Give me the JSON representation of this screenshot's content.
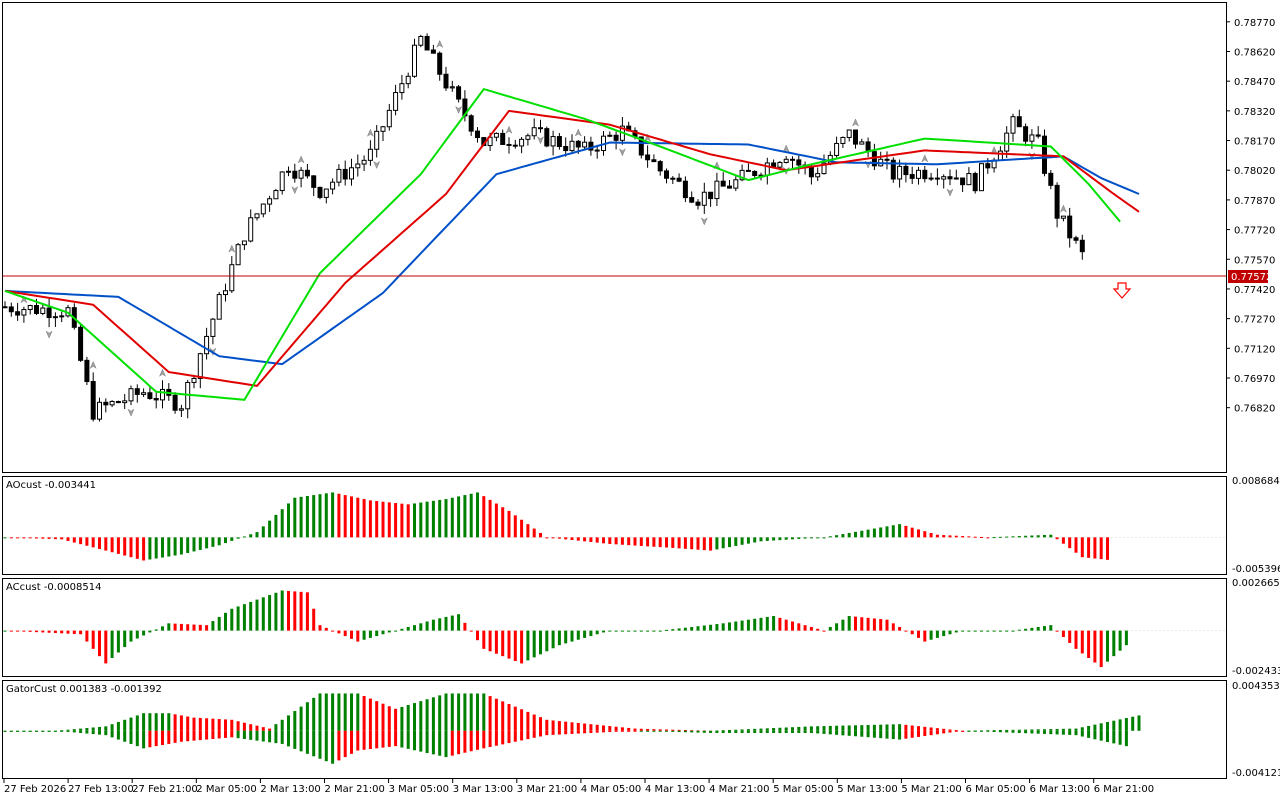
{
  "colors": {
    "bull": "#008000",
    "bear": "#ff0000",
    "jaw": "#0050c8",
    "teeth": "#e00000",
    "lips": "#00e000",
    "price_line": "#c00000",
    "candle": "#000000",
    "fractal": "#a0a0a0",
    "axis": "#000000"
  },
  "icons": {
    "signal": "down-arrow-icon",
    "fractal": "fractal-arrow-icon"
  },
  "chart_data": [
    {
      "type": "candlestick",
      "title": "",
      "ylim": [
        0.765,
        0.7886
      ],
      "y_ticks": [
        "0.78770",
        "0.78620",
        "0.78470",
        "0.78320",
        "0.78170",
        "0.78020",
        "0.77870",
        "0.77720",
        "0.77570",
        "0.77420",
        "0.77270",
        "0.77120",
        "0.76970",
        "0.76820"
      ],
      "current_price": "0.77572",
      "x_labels": [
        "27 Feb 2026",
        "27 Feb 13:00",
        "27 Feb 21:00",
        "2 Mar 05:00",
        "2 Mar 13:00",
        "2 Mar 21:00",
        "3 Mar 05:00",
        "3 Mar 13:00",
        "3 Mar 21:00",
        "4 Mar 05:00",
        "4 Mar 13:00",
        "4 Mar 21:00",
        "5 Mar 05:00",
        "5 Mar 13:00",
        "5 Mar 21:00",
        "6 Mar 05:00",
        "6 Mar 13:00",
        "6 Mar 21:00"
      ],
      "close_path": [
        [
          0,
          0.7733
        ],
        [
          10,
          0.7731
        ],
        [
          14,
          0.768
        ],
        [
          22,
          0.769
        ],
        [
          28,
          0.7684
        ],
        [
          38,
          0.777
        ],
        [
          45,
          0.7805
        ],
        [
          50,
          0.7792
        ],
        [
          58,
          0.781
        ],
        [
          66,
          0.7868
        ],
        [
          72,
          0.7835
        ],
        [
          76,
          0.7816
        ],
        [
          84,
          0.782
        ],
        [
          92,
          0.7812
        ],
        [
          98,
          0.7822
        ],
        [
          104,
          0.7802
        ],
        [
          110,
          0.7788
        ],
        [
          116,
          0.7796
        ],
        [
          124,
          0.7811
        ],
        [
          128,
          0.7799
        ],
        [
          134,
          0.782
        ],
        [
          141,
          0.78
        ],
        [
          148,
          0.7802
        ],
        [
          154,
          0.7796
        ],
        [
          160,
          0.7825
        ],
        [
          164,
          0.7815
        ],
        [
          167,
          0.778
        ],
        [
          171,
          0.7759
        ]
      ],
      "alligator_jaw": [
        [
          0,
          0.7741
        ],
        [
          18,
          0.7738
        ],
        [
          34,
          0.7708
        ],
        [
          44,
          0.7704
        ],
        [
          60,
          0.774
        ],
        [
          78,
          0.78
        ],
        [
          96,
          0.7816
        ],
        [
          118,
          0.7815
        ],
        [
          132,
          0.7806
        ],
        [
          148,
          0.7805
        ],
        [
          168,
          0.7809
        ],
        [
          174,
          0.7798
        ],
        [
          180,
          0.779
        ]
      ],
      "alligator_teeth": [
        [
          0,
          0.7741
        ],
        [
          14,
          0.7734
        ],
        [
          26,
          0.77
        ],
        [
          40,
          0.7693
        ],
        [
          54,
          0.7745
        ],
        [
          70,
          0.779
        ],
        [
          80,
          0.7832
        ],
        [
          96,
          0.7825
        ],
        [
          112,
          0.781
        ],
        [
          124,
          0.7802
        ],
        [
          146,
          0.7812
        ],
        [
          168,
          0.7809
        ],
        [
          176,
          0.779
        ],
        [
          180,
          0.7781
        ]
      ],
      "alligator_lips": [
        [
          0,
          0.7741
        ],
        [
          10,
          0.773
        ],
        [
          24,
          0.769
        ],
        [
          38,
          0.7686
        ],
        [
          50,
          0.775
        ],
        [
          66,
          0.78
        ],
        [
          76,
          0.7843
        ],
        [
          92,
          0.7828
        ],
        [
          104,
          0.7814
        ],
        [
          118,
          0.7797
        ],
        [
          128,
          0.7805
        ],
        [
          146,
          0.7818
        ],
        [
          166,
          0.7814
        ],
        [
          172,
          0.7795
        ],
        [
          177,
          0.7776
        ]
      ]
    },
    {
      "type": "bar",
      "name": "AOcust",
      "label_value": "-0.003441",
      "ylim": [
        -0.005396,
        0.008684
      ],
      "y_ticks": [
        "0.008684",
        "-0.005396"
      ],
      "values_path": [
        [
          0,
          0
        ],
        [
          9,
          -0.0003
        ],
        [
          16,
          -0.002
        ],
        [
          22,
          -0.0035
        ],
        [
          28,
          -0.0026
        ],
        [
          34,
          -0.0012
        ],
        [
          40,
          0.0008
        ],
        [
          46,
          0.006
        ],
        [
          52,
          0.0068
        ],
        [
          58,
          0.0056
        ],
        [
          64,
          0.005
        ],
        [
          70,
          0.0058
        ],
        [
          75,
          0.0068
        ],
        [
          80,
          0.004
        ],
        [
          86,
          0
        ],
        [
          96,
          -0.001
        ],
        [
          106,
          -0.0016
        ],
        [
          112,
          -0.002
        ],
        [
          120,
          -0.0006
        ],
        [
          130,
          0
        ],
        [
          136,
          0.001
        ],
        [
          142,
          0.002
        ],
        [
          148,
          0.0004
        ],
        [
          156,
          0
        ],
        [
          166,
          0.0004
        ],
        [
          171,
          -0.003
        ],
        [
          175,
          -0.0034
        ]
      ]
    },
    {
      "type": "bar",
      "name": "ACcust",
      "label_value": "-0.0008514",
      "ylim": [
        -0.0024338,
        0.0026658
      ],
      "y_ticks": [
        "0.0026658",
        "-0.0024338"
      ],
      "values_path": [
        [
          0,
          0
        ],
        [
          12,
          -0.0002
        ],
        [
          16,
          -0.0018
        ],
        [
          20,
          -0.0006
        ],
        [
          26,
          0.0004
        ],
        [
          32,
          0.0003
        ],
        [
          36,
          0.0012
        ],
        [
          44,
          0.0022
        ],
        [
          48,
          0.0021
        ],
        [
          50,
          0.0003
        ],
        [
          56,
          -0.0006
        ],
        [
          62,
          0
        ],
        [
          68,
          0.0006
        ],
        [
          72,
          0.0009
        ],
        [
          76,
          -0.001
        ],
        [
          82,
          -0.0018
        ],
        [
          88,
          -0.0008
        ],
        [
          96,
          0
        ],
        [
          104,
          0
        ],
        [
          114,
          0.0004
        ],
        [
          122,
          0.0008
        ],
        [
          130,
          0
        ],
        [
          134,
          0.0008
        ],
        [
          140,
          0.0006
        ],
        [
          146,
          -0.0006
        ],
        [
          152,
          0
        ],
        [
          160,
          0
        ],
        [
          166,
          0.0003
        ],
        [
          170,
          -0.001
        ],
        [
          174,
          -0.002
        ],
        [
          178,
          -0.0008
        ]
      ]
    },
    {
      "type": "bar",
      "name": "GatorCust",
      "label_value": "0.001383 -0.001392",
      "ylim": [
        -0.004121,
        0.004353
      ],
      "y_ticks": [
        "0.004353",
        "-0.004121"
      ],
      "upper_path": [
        [
          0,
          0
        ],
        [
          8,
          0
        ],
        [
          16,
          0.0004
        ],
        [
          22,
          0.0016
        ],
        [
          26,
          0.0016
        ],
        [
          30,
          0.0012
        ],
        [
          36,
          0.001
        ],
        [
          42,
          0.0002
        ],
        [
          50,
          0.0034
        ],
        [
          56,
          0.0034
        ],
        [
          62,
          0.002
        ],
        [
          70,
          0.0034
        ],
        [
          76,
          0.0034
        ],
        [
          86,
          0.001
        ],
        [
          100,
          0.0002
        ],
        [
          112,
          0
        ],
        [
          128,
          0.0004
        ],
        [
          142,
          0.0006
        ],
        [
          152,
          0
        ],
        [
          170,
          0.0002
        ],
        [
          180,
          0.0014
        ]
      ],
      "lower_path": [
        [
          0,
          0
        ],
        [
          8,
          0
        ],
        [
          16,
          -0.0004
        ],
        [
          22,
          -0.0016
        ],
        [
          28,
          -0.001
        ],
        [
          36,
          -0.0006
        ],
        [
          44,
          -0.0012
        ],
        [
          52,
          -0.003
        ],
        [
          56,
          -0.0018
        ],
        [
          62,
          -0.0014
        ],
        [
          70,
          -0.0024
        ],
        [
          76,
          -0.0016
        ],
        [
          86,
          -0.0004
        ],
        [
          100,
          0
        ],
        [
          112,
          -0.0002
        ],
        [
          128,
          -0.0002
        ],
        [
          142,
          -0.0008
        ],
        [
          152,
          0
        ],
        [
          170,
          -0.0004
        ],
        [
          178,
          -0.0014
        ]
      ]
    }
  ]
}
